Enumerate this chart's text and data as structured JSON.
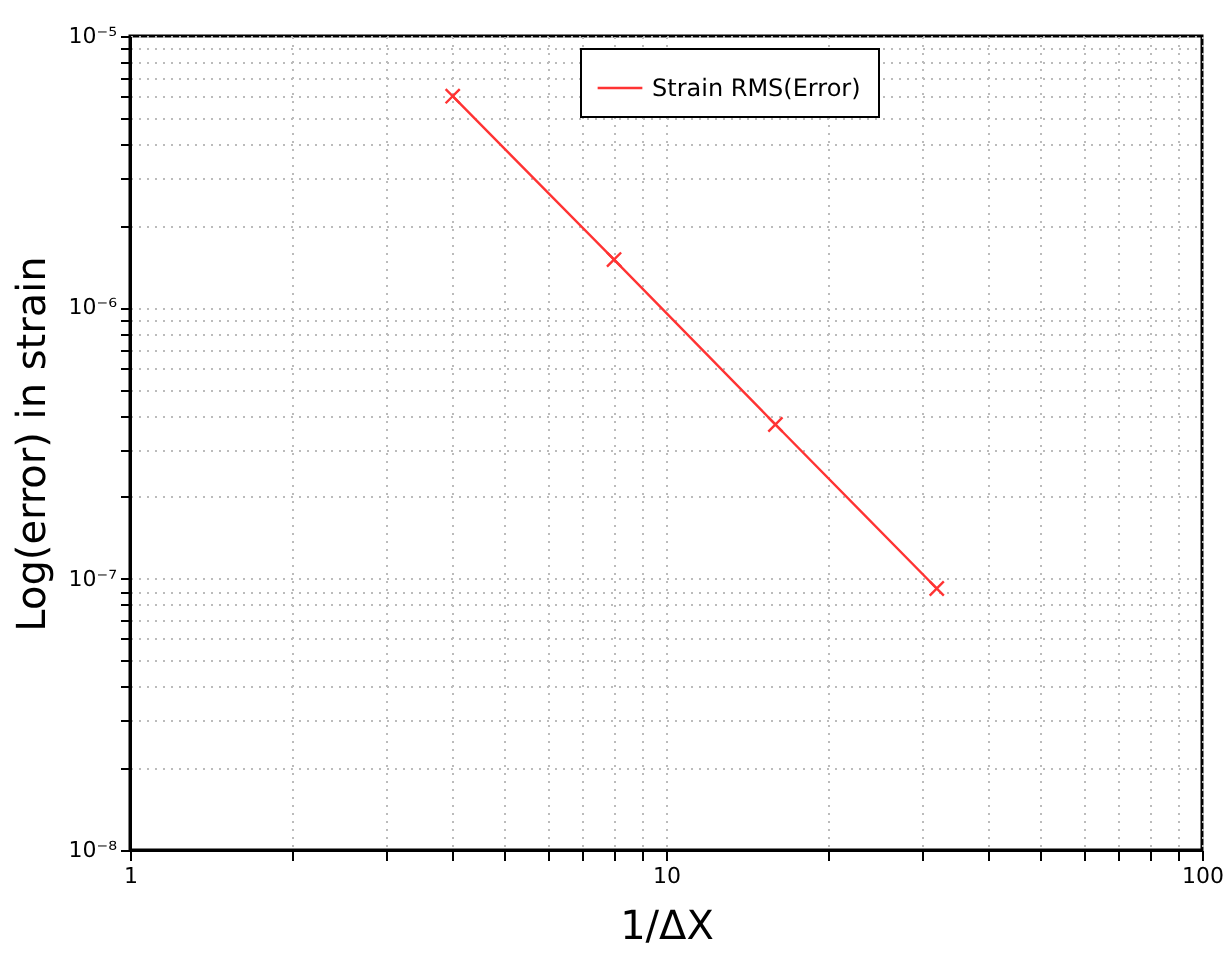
{
  "chart_data": {
    "type": "line",
    "xlabel": "1/ΔX",
    "ylabel": "Log(error) in strain",
    "x": [
      4,
      8,
      16,
      32
    ],
    "series": [
      {
        "name": "Strain RMS(Error)",
        "color": "#ff3333",
        "values": [
          6e-06,
          1.5e-06,
          3.7e-07,
          9.2e-08
        ]
      }
    ],
    "log": "xy",
    "xlim": [
      1,
      100
    ],
    "ylim": [
      1e-08,
      1e-05
    ],
    "xticks": [
      1,
      {
        "value": 2,
        "label": null
      },
      {
        "value": 3,
        "label": null
      },
      {
        "value": 4,
        "label": null
      },
      {
        "value": 5,
        "label": null
      },
      {
        "value": 6,
        "label": null
      },
      {
        "value": 7,
        "label": null
      },
      {
        "value": 8,
        "label": null
      },
      {
        "value": 9,
        "label": null
      },
      10,
      {
        "value": 20,
        "label": null
      },
      {
        "value": 30,
        "label": null
      },
      {
        "value": 40,
        "label": null
      },
      {
        "value": 50,
        "label": null
      },
      {
        "value": 60,
        "label": null
      },
      {
        "value": 70,
        "label": null
      },
      {
        "value": 80,
        "label": null
      },
      {
        "value": 90,
        "label": null
      },
      100
    ],
    "yticks": [
      {
        "value": 1e-08,
        "label": "10⁻⁸"
      },
      {
        "value": 2e-08,
        "label": null
      },
      {
        "value": 3e-08,
        "label": null
      },
      {
        "value": 4e-08,
        "label": null
      },
      {
        "value": 5e-08,
        "label": null
      },
      {
        "value": 6e-08,
        "label": null
      },
      {
        "value": 7e-08,
        "label": null
      },
      {
        "value": 8e-08,
        "label": null
      },
      {
        "value": 9e-08,
        "label": null
      },
      {
        "value": 1e-07,
        "label": "10⁻⁷"
      },
      {
        "value": 2e-07,
        "label": null
      },
      {
        "value": 3e-07,
        "label": null
      },
      {
        "value": 4e-07,
        "label": null
      },
      {
        "value": 5e-07,
        "label": null
      },
      {
        "value": 6e-07,
        "label": null
      },
      {
        "value": 7e-07,
        "label": null
      },
      {
        "value": 8e-07,
        "label": null
      },
      {
        "value": 9e-07,
        "label": null
      },
      {
        "value": 1e-06,
        "label": "10⁻⁶"
      },
      {
        "value": 2e-06,
        "label": null
      },
      {
        "value": 3e-06,
        "label": null
      },
      {
        "value": 4e-06,
        "label": null
      },
      {
        "value": 5e-06,
        "label": null
      },
      {
        "value": 6e-06,
        "label": null
      },
      {
        "value": 7e-06,
        "label": null
      },
      {
        "value": 8e-06,
        "label": null
      },
      {
        "value": 9e-06,
        "label": null
      },
      {
        "value": 1e-05,
        "label": "10⁻⁵"
      }
    ],
    "grid": true,
    "legend": "top",
    "marker": "cross",
    "line_style": "solid"
  }
}
